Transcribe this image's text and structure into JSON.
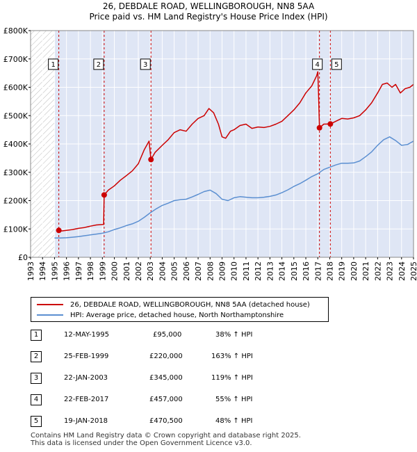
{
  "title_line1": "26, DEBDALE ROAD, WELLINGBOROUGH, NN8 5AA",
  "title_line2": "Price paid vs. HM Land Registry's House Price Index (HPI)",
  "colors": {
    "property": "#cc0000",
    "hpi": "#5b8fd1",
    "shade": "#dfe6f5",
    "hatch": "#bbbbbb",
    "vline": "#cc0000"
  },
  "legend": {
    "property_label": "26, DEBDALE ROAD, WELLINGBOROUGH, NN8 5AA (detached house)",
    "hpi_label": "HPI: Average price, detached house, North Northamptonshire"
  },
  "sales": [
    {
      "num": "1",
      "date": "12-MAY-1995",
      "price": "£95,000",
      "hpi": "38% ↑ HPI"
    },
    {
      "num": "2",
      "date": "25-FEB-1999",
      "price": "£220,000",
      "hpi": "163% ↑ HPI"
    },
    {
      "num": "3",
      "date": "22-JAN-2003",
      "price": "£345,000",
      "hpi": "119% ↑ HPI"
    },
    {
      "num": "4",
      "date": "22-FEB-2017",
      "price": "£457,000",
      "hpi": "55% ↑ HPI"
    },
    {
      "num": "5",
      "date": "19-JAN-2018",
      "price": "£470,500",
      "hpi": "48% ↑ HPI"
    }
  ],
  "footer_line1": "Contains HM Land Registry data © Crown copyright and database right 2025.",
  "footer_line2": "This data is licensed under the Open Government Licence v3.0.",
  "chart_data": {
    "type": "line",
    "title": "26, DEBDALE ROAD, WELLINGBOROUGH, NN8 5AA - Price paid vs. HM Land Registry's House Price Index (HPI)",
    "xlim": [
      1993,
      2025
    ],
    "ylim": [
      0,
      800000
    ],
    "y_ticks": [
      0,
      100000,
      200000,
      300000,
      400000,
      500000,
      600000,
      700000,
      800000
    ],
    "y_tick_labels": [
      "£0",
      "£100K",
      "£200K",
      "£300K",
      "£400K",
      "£500K",
      "£600K",
      "£700K",
      "£800K"
    ],
    "x_ticks": [
      1993,
      1994,
      1995,
      1996,
      1997,
      1998,
      1999,
      2000,
      2001,
      2002,
      2003,
      2004,
      2005,
      2006,
      2007,
      2008,
      2009,
      2010,
      2011,
      2012,
      2013,
      2014,
      2015,
      2016,
      2017,
      2018,
      2019,
      2020,
      2021,
      2022,
      2023,
      2024,
      2025
    ],
    "history_start": 1995.0,
    "series": [
      {
        "name": "26, DEBDALE ROAD, WELLINGBOROUGH, NN8 5AA (detached house)",
        "x": [
          1995.36,
          1995.6,
          1996.0,
          1996.5,
          1997.0,
          1997.5,
          1998.0,
          1998.5,
          1999.1,
          1999.15,
          1999.5,
          2000.0,
          2000.5,
          2001.0,
          2001.5,
          2002.0,
          2002.5,
          2002.9,
          2003.06,
          2003.4,
          2004.0,
          2004.5,
          2005.0,
          2005.5,
          2006.0,
          2006.5,
          2007.0,
          2007.5,
          2007.9,
          2008.3,
          2008.7,
          2009.0,
          2009.3,
          2009.7,
          2010.0,
          2010.5,
          2011.0,
          2011.5,
          2012.0,
          2012.5,
          2013.0,
          2013.5,
          2014.0,
          2014.5,
          2015.0,
          2015.5,
          2016.0,
          2016.5,
          2016.9,
          2017.0,
          2017.14,
          2017.5,
          2018.05,
          2018.5,
          2019.0,
          2019.5,
          2020.0,
          2020.5,
          2021.0,
          2021.5,
          2022.0,
          2022.4,
          2022.8,
          2023.2,
          2023.5,
          2023.9,
          2024.3,
          2024.7,
          2025.0
        ],
        "values": [
          95000,
          93000,
          95000,
          98000,
          102000,
          105000,
          110000,
          114000,
          116000,
          220000,
          237000,
          252000,
          272000,
          288000,
          305000,
          330000,
          380000,
          410000,
          345000,
          370000,
          395000,
          415000,
          440000,
          450000,
          445000,
          470000,
          490000,
          500000,
          525000,
          510000,
          470000,
          425000,
          420000,
          445000,
          450000,
          465000,
          470000,
          455000,
          460000,
          458000,
          462000,
          470000,
          480000,
          500000,
          520000,
          545000,
          580000,
          605000,
          640000,
          655000,
          457000,
          470000,
          470500,
          480000,
          490000,
          488000,
          492000,
          500000,
          520000,
          545000,
          580000,
          610000,
          615000,
          600000,
          610000,
          580000,
          595000,
          600000,
          610000
        ]
      },
      {
        "name": "HPI: Average price, detached house, North Northamptonshire",
        "x": [
          1995.0,
          1995.5,
          1996.0,
          1996.5,
          1997.0,
          1997.5,
          1998.0,
          1998.5,
          1999.0,
          1999.5,
          2000.0,
          2000.5,
          2001.0,
          2001.5,
          2002.0,
          2002.5,
          2003.0,
          2003.5,
          2004.0,
          2004.5,
          2005.0,
          2005.5,
          2006.0,
          2006.5,
          2007.0,
          2007.5,
          2008.0,
          2008.5,
          2009.0,
          2009.5,
          2010.0,
          2010.5,
          2011.0,
          2011.5,
          2012.0,
          2012.5,
          2013.0,
          2013.5,
          2014.0,
          2014.5,
          2015.0,
          2015.5,
          2016.0,
          2016.5,
          2017.0,
          2017.5,
          2018.0,
          2018.5,
          2019.0,
          2019.5,
          2020.0,
          2020.5,
          2021.0,
          2021.5,
          2022.0,
          2022.5,
          2023.0,
          2023.5,
          2024.0,
          2024.5,
          2025.0
        ],
        "values": [
          68000,
          68000,
          69000,
          71000,
          73000,
          76000,
          79000,
          82000,
          85000,
          90000,
          98000,
          104000,
          112000,
          118000,
          127000,
          141000,
          157000,
          171000,
          183000,
          191000,
          200000,
          203000,
          205000,
          213000,
          222000,
          232000,
          237000,
          225000,
          205000,
          200000,
          210000,
          214000,
          212000,
          210000,
          210000,
          212000,
          215000,
          220000,
          228000,
          238000,
          250000,
          260000,
          272000,
          285000,
          295000,
          310000,
          318000,
          326000,
          332000,
          332000,
          333000,
          340000,
          355000,
          372000,
          395000,
          415000,
          425000,
          412000,
          395000,
          398000,
          410000
        ]
      }
    ],
    "sale_points": [
      {
        "label": "1",
        "x": 1995.36,
        "y": 95000
      },
      {
        "label": "2",
        "x": 1999.15,
        "y": 220000
      },
      {
        "label": "3",
        "x": 2003.06,
        "y": 345000
      },
      {
        "label": "4",
        "x": 2017.14,
        "y": 457000
      },
      {
        "label": "5",
        "x": 2018.05,
        "y": 470500
      }
    ],
    "sale_markers_value": 680000
  }
}
